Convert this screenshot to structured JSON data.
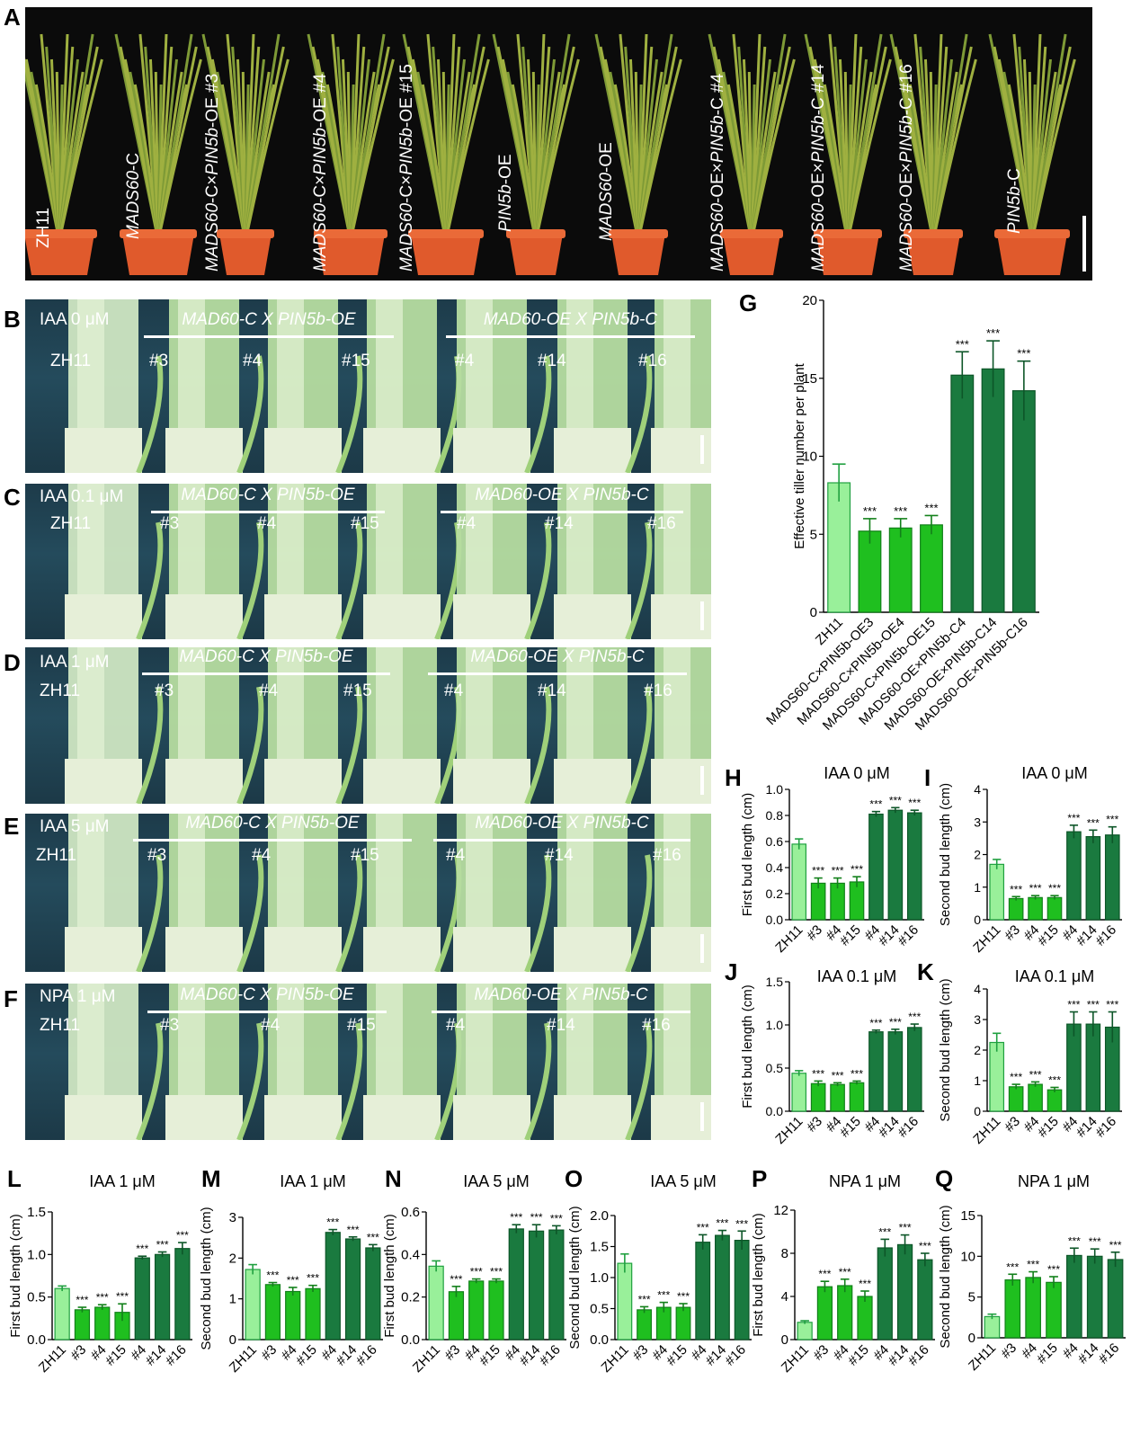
{
  "panel_letters": [
    "A",
    "B",
    "C",
    "D",
    "E",
    "F",
    "G",
    "H",
    "I",
    "J",
    "K",
    "L",
    "M",
    "N",
    "O",
    "P",
    "Q"
  ],
  "panelA": {
    "labels": [
      {
        "pre": "ZH11",
        "ital": "",
        "mid": "",
        "post": ""
      },
      {
        "pre": "",
        "ital": "MADS60",
        "mid": "-C",
        "post": ""
      },
      {
        "pre": "",
        "ital": "MADS60",
        "mid": "-C×",
        "ital2": "PIN5b",
        "post": "-OE #3"
      },
      {
        "pre": "",
        "ital": "MADS60",
        "mid": "-C×",
        "ital2": "PIN5b",
        "post": "-OE #4"
      },
      {
        "pre": "",
        "ital": "MADS60",
        "mid": "-C×",
        "ital2": "PIN5b",
        "post": "-OE #15"
      },
      {
        "pre": "",
        "ital": "PIN5b",
        "mid": "-OE",
        "post": ""
      },
      {
        "pre": "",
        "ital": "MADS60",
        "mid": "-OE",
        "post": ""
      },
      {
        "pre": "",
        "ital": "MADS60",
        "mid": "-OE×",
        "ital2": "PIN5b",
        "post": "-C #4"
      },
      {
        "pre": "",
        "ital": "MADS60",
        "mid": "-OE×",
        "ital2": "PIN5b",
        "post": "-C #14"
      },
      {
        "pre": "",
        "ital": "MADS60",
        "mid": "-OE×",
        "ital2": "PIN5b",
        "post": "-C #16"
      },
      {
        "pre": "",
        "ital": "PIN5b",
        "mid": "-C",
        "post": ""
      }
    ]
  },
  "photo_rows": [
    {
      "letter": "B",
      "treatment": "IAA 0 μM",
      "group1": "MAD60-C X PIN5b-OE",
      "group2": "MAD60-OE X PIN5b-C",
      "ctrl": "ZH11",
      "lines": [
        "#3",
        "#4",
        "#15",
        "#4",
        "#14",
        "#16"
      ]
    },
    {
      "letter": "C",
      "treatment": "IAA 0.1 μM",
      "group1": "MAD60-C X PIN5b-OE",
      "group2": "MAD60-OE X PIN5b-C",
      "ctrl": "ZH11",
      "lines": [
        "#3",
        "#4",
        "#15",
        "#4",
        "#14",
        "#16"
      ]
    },
    {
      "letter": "D",
      "treatment": "IAA 1 μM",
      "group1": "MAD60-C X PIN5b-OE",
      "group2": "MAD60-OE X PIN5b-C",
      "ctrl": "ZH11",
      "lines": [
        "#3",
        "#4",
        "#15",
        "#4",
        "#14",
        "#16"
      ]
    },
    {
      "letter": "E",
      "treatment": "IAA 5 μM",
      "group1": "MAD60-C X PIN5b-OE",
      "group2": "MAD60-OE X PIN5b-C",
      "ctrl": "ZH11",
      "lines": [
        "#3",
        "#4",
        "#15",
        "#4",
        "#14",
        "#16"
      ]
    },
    {
      "letter": "F",
      "treatment": "NPA 1 μM",
      "group1": "MAD60-C X PIN5b-OE",
      "group2": "MAD60-OE X PIN5b-C",
      "ctrl": "ZH11",
      "lines": [
        "#3",
        "#4",
        "#15",
        "#4",
        "#14",
        "#16"
      ]
    }
  ],
  "colors": {
    "light": "#99f09a",
    "mid": "#1fbf1f",
    "dark": "#1a7a3f",
    "lightStroke": "#20a040",
    "midStroke": "#12801a",
    "darkStroke": "#0d5628"
  },
  "chart_data": [
    {
      "id": "G",
      "type": "bar",
      "title": "",
      "ylabel": "Effective tiller number per plant",
      "ylim": [
        0,
        20
      ],
      "yticks": [
        "0",
        "5",
        "10",
        "15",
        "20"
      ],
      "categories": [
        "ZH11",
        "MADS60-C×PIN5b-OE3",
        "MADS60-C×PIN5b-OE4",
        "MADS60-C×PIN5b-OE15",
        "MADS60-OE×PIN5b-C4",
        "MADS60-OE×PIN5b-C14",
        "MADS60-OE×PIN5b-C16"
      ],
      "values": [
        8.3,
        5.2,
        5.4,
        5.6,
        15.2,
        15.6,
        14.2
      ],
      "errors": [
        1.2,
        0.8,
        0.6,
        0.6,
        1.5,
        1.8,
        1.9
      ],
      "sig": [
        "",
        "***",
        "***",
        "***",
        "***",
        "***",
        "***"
      ]
    },
    {
      "id": "H",
      "type": "bar",
      "title": "IAA 0 μM",
      "ylabel": "First bud length (cm)",
      "ylim": [
        0,
        1.0
      ],
      "yticks": [
        "0.0",
        "0.2",
        "0.4",
        "0.6",
        "0.8",
        "1.0"
      ],
      "categories": [
        "ZH11",
        "#3",
        "#4",
        "#15",
        "#4",
        "#14",
        "#16"
      ],
      "values": [
        0.58,
        0.28,
        0.28,
        0.29,
        0.81,
        0.84,
        0.82
      ],
      "errors": [
        0.04,
        0.04,
        0.04,
        0.04,
        0.02,
        0.02,
        0.02
      ],
      "sig": [
        "",
        "***",
        "***",
        "***",
        "***",
        "***",
        "***"
      ]
    },
    {
      "id": "I",
      "type": "bar",
      "title": "IAA 0 μM",
      "ylabel": "Second bud length (cm)",
      "ylim": [
        0,
        4
      ],
      "yticks": [
        "0",
        "1",
        "2",
        "3",
        "4"
      ],
      "categories": [
        "ZH11",
        "#3",
        "#4",
        "#15",
        "#4",
        "#14",
        "#16"
      ],
      "values": [
        1.7,
        0.65,
        0.68,
        0.68,
        2.7,
        2.55,
        2.6
      ],
      "errors": [
        0.15,
        0.06,
        0.06,
        0.06,
        0.2,
        0.2,
        0.25
      ],
      "sig": [
        "",
        "***",
        "***",
        "***",
        "***",
        "***",
        "***"
      ]
    },
    {
      "id": "J",
      "type": "bar",
      "title": "IAA 0.1 μM",
      "ylabel": "First bud length (cm)",
      "ylim": [
        0,
        1.5
      ],
      "yticks": [
        "0.0",
        "0.5",
        "1.0",
        "1.5"
      ],
      "categories": [
        "ZH11",
        "#3",
        "#4",
        "#15",
        "#4",
        "#14",
        "#16"
      ],
      "values": [
        0.44,
        0.32,
        0.31,
        0.33,
        0.92,
        0.92,
        0.97
      ],
      "errors": [
        0.03,
        0.03,
        0.02,
        0.02,
        0.02,
        0.03,
        0.04
      ],
      "sig": [
        "",
        "***",
        "***",
        "***",
        "***",
        "***",
        "***"
      ]
    },
    {
      "id": "K",
      "type": "bar",
      "title": "IAA 0.1 μM",
      "ylabel": "Second bud length (cm)",
      "ylim": [
        0,
        4
      ],
      "yticks": [
        "0",
        "1",
        "2",
        "3",
        "4"
      ],
      "categories": [
        "ZH11",
        "#3",
        "#4",
        "#15",
        "#4",
        "#14",
        "#16"
      ],
      "values": [
        2.25,
        0.8,
        0.88,
        0.7,
        2.85,
        2.85,
        2.75
      ],
      "errors": [
        0.3,
        0.08,
        0.08,
        0.08,
        0.4,
        0.4,
        0.5
      ],
      "sig": [
        "",
        "***",
        "***",
        "***",
        "***",
        "***",
        "***"
      ]
    },
    {
      "id": "L",
      "type": "bar",
      "title": "IAA 1 μM",
      "ylabel": "First bud length (cm)",
      "ylim": [
        0,
        1.5
      ],
      "yticks": [
        "0.0",
        "0.5",
        "1.0",
        "1.5"
      ],
      "categories": [
        "ZH11",
        "#3",
        "#4",
        "#15",
        "#4",
        "#14",
        "#16"
      ],
      "values": [
        0.6,
        0.35,
        0.38,
        0.32,
        0.96,
        1.0,
        1.07
      ],
      "errors": [
        0.03,
        0.03,
        0.03,
        0.1,
        0.02,
        0.03,
        0.07
      ],
      "sig": [
        "",
        "***",
        "***",
        "***",
        "***",
        "***",
        "***"
      ]
    },
    {
      "id": "M",
      "type": "bar",
      "title": "IAA 1 μM",
      "ylabel": "Second bud length (cm)",
      "ylim": [
        0,
        3
      ],
      "yticks": [
        "0",
        "1",
        "2",
        "3"
      ],
      "categories": [
        "ZH11",
        "#3",
        "#4",
        "#15",
        "#4",
        "#14",
        "#16"
      ],
      "values": [
        1.72,
        1.35,
        1.18,
        1.25,
        2.63,
        2.47,
        2.25
      ],
      "errors": [
        0.12,
        0.05,
        0.1,
        0.08,
        0.07,
        0.05,
        0.08
      ],
      "sig": [
        "",
        "***",
        "***",
        "***",
        "***",
        "***",
        "***"
      ]
    },
    {
      "id": "N",
      "type": "bar",
      "title": "IAA 5 μM",
      "ylabel": "First bud length (cm)",
      "ylim": [
        0,
        0.6
      ],
      "yticks": [
        "0.0",
        "0.2",
        "0.4",
        "0.6"
      ],
      "categories": [
        "ZH11",
        "#3",
        "#4",
        "#15",
        "#4",
        "#14",
        "#16"
      ],
      "values": [
        0.345,
        0.225,
        0.275,
        0.275,
        0.52,
        0.51,
        0.515
      ],
      "errors": [
        0.025,
        0.025,
        0.01,
        0.01,
        0.02,
        0.03,
        0.02
      ],
      "sig": [
        "",
        "***",
        "***",
        "***",
        "***",
        "***",
        "***"
      ]
    },
    {
      "id": "O",
      "type": "bar",
      "title": "IAA 5 μM",
      "ylabel": "Second bud length (cm)",
      "ylim": [
        0,
        2.0
      ],
      "yticks": [
        "0.0",
        "0.5",
        "1.0",
        "1.5",
        "2.0"
      ],
      "categories": [
        "ZH11",
        "#3",
        "#4",
        "#15",
        "#4",
        "#14",
        "#16"
      ],
      "values": [
        1.23,
        0.48,
        0.52,
        0.52,
        1.57,
        1.68,
        1.6
      ],
      "errors": [
        0.15,
        0.05,
        0.08,
        0.06,
        0.12,
        0.08,
        0.15
      ],
      "sig": [
        "",
        "***",
        "***",
        "***",
        "***",
        "***",
        "***"
      ]
    },
    {
      "id": "P",
      "type": "bar",
      "title": "NPA 1 μM",
      "ylabel": "First bud length (cm)",
      "ylim": [
        0,
        12
      ],
      "yticks": [
        "0",
        "4",
        "8",
        "12"
      ],
      "categories": [
        "ZH11",
        "#3",
        "#4",
        "#15",
        "#4",
        "#14",
        "#16"
      ],
      "values": [
        1.6,
        4.9,
        5.0,
        4.0,
        8.5,
        8.8,
        7.4
      ],
      "errors": [
        0.15,
        0.5,
        0.6,
        0.5,
        0.8,
        0.9,
        0.6
      ],
      "sig": [
        "",
        "***",
        "***",
        "***",
        "***",
        "***",
        "***"
      ]
    },
    {
      "id": "Q",
      "type": "bar",
      "title": "NPA 1 μM",
      "ylabel": "Second bud length (cm)",
      "ylim": [
        0,
        15
      ],
      "yticks": [
        "0",
        "5",
        "10",
        "15"
      ],
      "categories": [
        "ZH11",
        "#3",
        "#4",
        "#15",
        "#4",
        "#14",
        "#16"
      ],
      "values": [
        2.6,
        7.1,
        7.4,
        6.8,
        10.1,
        10.0,
        9.6
      ],
      "errors": [
        0.3,
        0.7,
        0.7,
        0.7,
        0.9,
        0.9,
        0.9
      ],
      "sig": [
        "",
        "***",
        "***",
        "***",
        "***",
        "***",
        "***"
      ]
    }
  ]
}
